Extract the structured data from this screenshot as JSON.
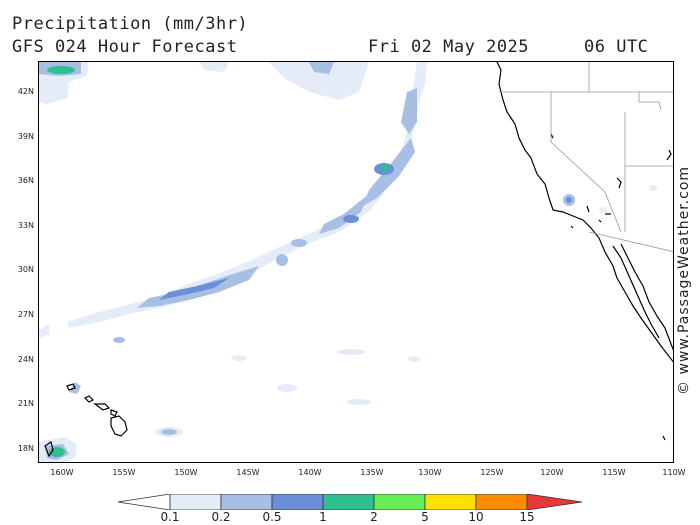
{
  "header": {
    "title": "Precipitation (mm/3hr)",
    "subtitle": "GFS 024 Hour Forecast",
    "date": "Fri 02 May 2025",
    "time": "06 UTC"
  },
  "map": {
    "lat_labels": [
      "42N",
      "39N",
      "36N",
      "33N",
      "30N",
      "27N",
      "24N",
      "21N",
      "18N"
    ],
    "lon_labels": [
      "160W",
      "155W",
      "150W",
      "145W",
      "140W",
      "135W",
      "130W",
      "125W",
      "120W",
      "115W",
      "110W"
    ]
  },
  "credit": "© www.PassageWeather.com",
  "legend": {
    "labels": [
      "0.1",
      "0.2",
      "0.5",
      "1",
      "2",
      "5",
      "10",
      "15"
    ],
    "colors": [
      "#ffffff",
      "#e4ecf8",
      "#a6bfe3",
      "#6b8fd8",
      "#2fbe8f",
      "#66ee55",
      "#ffe000",
      "#ff8c00",
      "#e8383a"
    ]
  }
}
